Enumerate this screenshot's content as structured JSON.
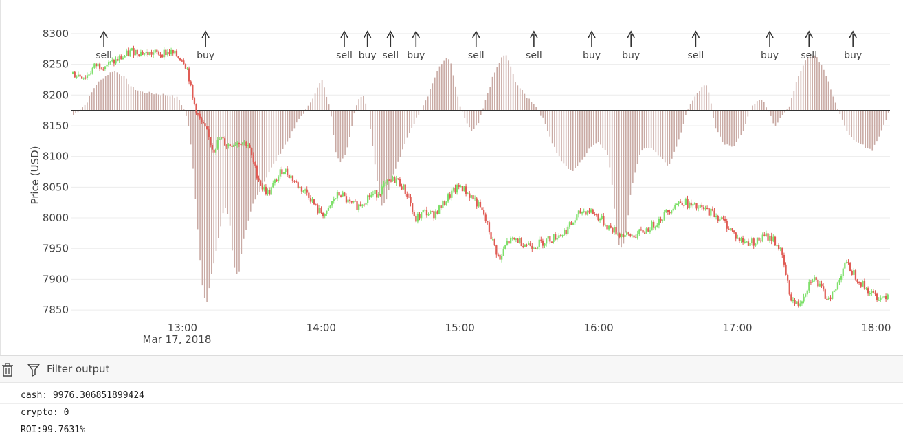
{
  "chart_data": {
    "type": "candlestick",
    "ylabel": "Price (USD)",
    "ylim": [
      7840,
      8310
    ],
    "yticks": [
      7850,
      7900,
      7950,
      8000,
      8050,
      8100,
      8150,
      8200,
      8250,
      8300
    ],
    "xlim": [
      "12:12",
      "18:06"
    ],
    "xticks": [
      {
        "time": "13:00",
        "label": "13:00",
        "sublabel": "Mar 17, 2018"
      },
      {
        "time": "14:00",
        "label": "14:00"
      },
      {
        "time": "15:00",
        "label": "15:00"
      },
      {
        "time": "16:00",
        "label": "16:00"
      },
      {
        "time": "17:00",
        "label": "17:00"
      },
      {
        "time": "18:00",
        "label": "18:00"
      }
    ],
    "baseline": 8175,
    "colors": {
      "up": "#7ee06b",
      "down": "#e05c55",
      "histogram": "#c9aaa4",
      "baseline": "#333333"
    },
    "price_path": [
      [
        "12:12",
        8235
      ],
      [
        "12:18",
        8230
      ],
      [
        "12:22",
        8248
      ],
      [
        "12:28",
        8250
      ],
      [
        "12:34",
        8262
      ],
      [
        "12:38",
        8272
      ],
      [
        "12:44",
        8268
      ],
      [
        "12:50",
        8268
      ],
      [
        "12:54",
        8270
      ],
      [
        "12:58",
        8262
      ],
      [
        "13:00",
        8258
      ],
      [
        "13:02",
        8240
      ],
      [
        "13:04",
        8195
      ],
      [
        "13:07",
        8160
      ],
      [
        "13:10",
        8140
      ],
      [
        "13:13",
        8110
      ],
      [
        "13:16",
        8130
      ],
      [
        "13:19",
        8118
      ],
      [
        "13:22",
        8122
      ],
      [
        "13:25",
        8125
      ],
      [
        "13:28",
        8120
      ],
      [
        "13:31",
        8080
      ],
      [
        "13:34",
        8050
      ],
      [
        "13:37",
        8040
      ],
      [
        "13:40",
        8060
      ],
      [
        "13:43",
        8080
      ],
      [
        "13:46",
        8070
      ],
      [
        "13:50",
        8050
      ],
      [
        "13:54",
        8040
      ],
      [
        "13:58",
        8012
      ],
      [
        "14:02",
        8005
      ],
      [
        "14:05",
        8030
      ],
      [
        "14:08",
        8040
      ],
      [
        "14:12",
        8022
      ],
      [
        "14:16",
        8020
      ],
      [
        "14:20",
        8035
      ],
      [
        "14:24",
        8040
      ],
      [
        "14:28",
        8055
      ],
      [
        "14:32",
        8064
      ],
      [
        "14:35",
        8050
      ],
      [
        "14:38",
        8030
      ],
      [
        "14:40",
        7995
      ],
      [
        "14:44",
        8010
      ],
      [
        "14:48",
        8005
      ],
      [
        "14:52",
        8020
      ],
      [
        "14:56",
        8040
      ],
      [
        "15:00",
        8052
      ],
      [
        "15:03",
        8040
      ],
      [
        "15:06",
        8030
      ],
      [
        "15:10",
        8005
      ],
      [
        "15:14",
        7960
      ],
      [
        "15:17",
        7930
      ],
      [
        "15:20",
        7960
      ],
      [
        "15:24",
        7965
      ],
      [
        "15:28",
        7958
      ],
      [
        "15:32",
        7955
      ],
      [
        "15:36",
        7962
      ],
      [
        "15:40",
        7968
      ],
      [
        "15:44",
        7975
      ],
      [
        "15:48",
        7990
      ],
      [
        "15:52",
        8010
      ],
      [
        "15:56",
        8012
      ],
      [
        "16:00",
        8000
      ],
      [
        "16:04",
        7985
      ],
      [
        "16:08",
        7975
      ],
      [
        "16:12",
        7970
      ],
      [
        "16:16",
        7972
      ],
      [
        "16:20",
        7980
      ],
      [
        "16:24",
        7990
      ],
      [
        "16:28",
        8005
      ],
      [
        "16:32",
        8020
      ],
      [
        "16:36",
        8028
      ],
      [
        "16:40",
        8018
      ],
      [
        "16:44",
        8015
      ],
      [
        "16:48",
        8010
      ],
      [
        "16:52",
        8000
      ],
      [
        "16:56",
        7985
      ],
      [
        "17:00",
        7965
      ],
      [
        "17:04",
        7960
      ],
      [
        "17:08",
        7962
      ],
      [
        "17:12",
        7970
      ],
      [
        "17:15",
        7966
      ],
      [
        "17:18",
        7950
      ],
      [
        "17:20",
        7920
      ],
      [
        "17:22",
        7880
      ],
      [
        "17:24",
        7862
      ],
      [
        "17:26",
        7858
      ],
      [
        "17:29",
        7880
      ],
      [
        "17:32",
        7905
      ],
      [
        "17:35",
        7890
      ],
      [
        "17:38",
        7870
      ],
      [
        "17:42",
        7880
      ],
      [
        "17:46",
        7928
      ],
      [
        "17:50",
        7910
      ],
      [
        "17:54",
        7890
      ],
      [
        "17:58",
        7875
      ],
      [
        "18:02",
        7870
      ],
      [
        "18:06",
        7880
      ]
    ],
    "histogram_path": [
      [
        "12:12",
        8165
      ],
      [
        "12:18",
        8185
      ],
      [
        "12:22",
        8215
      ],
      [
        "12:26",
        8230
      ],
      [
        "12:30",
        8240
      ],
      [
        "12:34",
        8232
      ],
      [
        "12:38",
        8212
      ],
      [
        "12:42",
        8205
      ],
      [
        "12:48",
        8202
      ],
      [
        "12:54",
        8200
      ],
      [
        "12:58",
        8195
      ],
      [
        "13:00",
        8180
      ],
      [
        "13:02",
        8160
      ],
      [
        "13:04",
        8100
      ],
      [
        "13:06",
        8000
      ],
      [
        "13:08",
        7900
      ],
      [
        "13:10",
        7855
      ],
      [
        "13:12",
        7900
      ],
      [
        "13:15",
        7960
      ],
      [
        "13:18",
        8020
      ],
      [
        "13:20",
        8000
      ],
      [
        "13:22",
        7920
      ],
      [
        "13:24",
        7905
      ],
      [
        "13:26",
        7960
      ],
      [
        "13:30",
        8020
      ],
      [
        "13:34",
        8050
      ],
      [
        "13:38",
        8080
      ],
      [
        "13:42",
        8105
      ],
      [
        "13:46",
        8130
      ],
      [
        "13:50",
        8160
      ],
      [
        "13:54",
        8180
      ],
      [
        "13:58",
        8210
      ],
      [
        "14:00",
        8225
      ],
      [
        "14:02",
        8200
      ],
      [
        "14:04",
        8170
      ],
      [
        "14:06",
        8110
      ],
      [
        "14:08",
        8090
      ],
      [
        "14:10",
        8100
      ],
      [
        "14:12",
        8130
      ],
      [
        "14:14",
        8170
      ],
      [
        "14:16",
        8195
      ],
      [
        "14:18",
        8200
      ],
      [
        "14:20",
        8175
      ],
      [
        "14:22",
        8120
      ],
      [
        "14:24",
        8060
      ],
      [
        "14:26",
        8020
      ],
      [
        "14:28",
        8030
      ],
      [
        "14:30",
        8060
      ],
      [
        "14:34",
        8100
      ],
      [
        "14:38",
        8140
      ],
      [
        "14:42",
        8170
      ],
      [
        "14:46",
        8200
      ],
      [
        "14:50",
        8240
      ],
      [
        "14:54",
        8262
      ],
      [
        "14:56",
        8250
      ],
      [
        "14:58",
        8210
      ],
      [
        "15:00",
        8180
      ],
      [
        "15:02",
        8160
      ],
      [
        "15:05",
        8140
      ],
      [
        "15:08",
        8155
      ],
      [
        "15:10",
        8180
      ],
      [
        "15:14",
        8230
      ],
      [
        "15:18",
        8262
      ],
      [
        "15:20",
        8265
      ],
      [
        "15:24",
        8220
      ],
      [
        "15:28",
        8200
      ],
      [
        "15:32",
        8185
      ],
      [
        "15:36",
        8160
      ],
      [
        "15:40",
        8120
      ],
      [
        "15:44",
        8090
      ],
      [
        "15:48",
        8075
      ],
      [
        "15:52",
        8090
      ],
      [
        "15:56",
        8115
      ],
      [
        "16:00",
        8125
      ],
      [
        "16:04",
        8100
      ],
      [
        "16:06",
        8040
      ],
      [
        "16:08",
        7960
      ],
      [
        "16:10",
        7950
      ],
      [
        "16:12",
        7985
      ],
      [
        "16:14",
        8050
      ],
      [
        "16:18",
        8110
      ],
      [
        "16:22",
        8115
      ],
      [
        "16:26",
        8100
      ],
      [
        "16:30",
        8085
      ],
      [
        "16:34",
        8120
      ],
      [
        "16:38",
        8175
      ],
      [
        "16:42",
        8200
      ],
      [
        "16:46",
        8220
      ],
      [
        "16:48",
        8195
      ],
      [
        "16:50",
        8150
      ],
      [
        "16:54",
        8120
      ],
      [
        "16:58",
        8115
      ],
      [
        "17:02",
        8140
      ],
      [
        "17:06",
        8180
      ],
      [
        "17:10",
        8195
      ],
      [
        "17:14",
        8170
      ],
      [
        "17:16",
        8148
      ],
      [
        "17:18",
        8160
      ],
      [
        "17:22",
        8180
      ],
      [
        "17:26",
        8230
      ],
      [
        "17:30",
        8262
      ],
      [
        "17:34",
        8265
      ],
      [
        "17:38",
        8235
      ],
      [
        "17:42",
        8190
      ],
      [
        "17:46",
        8150
      ],
      [
        "17:50",
        8125
      ],
      [
        "17:54",
        8118
      ],
      [
        "17:58",
        8110
      ],
      [
        "18:02",
        8140
      ],
      [
        "18:06",
        8180
      ]
    ],
    "annotations": [
      {
        "time": "12:26",
        "label": "sell"
      },
      {
        "time": "13:10",
        "label": "buy"
      },
      {
        "time": "14:10",
        "label": "sell"
      },
      {
        "time": "14:20",
        "label": "buy"
      },
      {
        "time": "14:30",
        "label": "sell"
      },
      {
        "time": "14:41",
        "label": "buy"
      },
      {
        "time": "15:07",
        "label": "sell"
      },
      {
        "time": "15:32",
        "label": "sell"
      },
      {
        "time": "15:57",
        "label": "buy"
      },
      {
        "time": "16:14",
        "label": "buy"
      },
      {
        "time": "16:42",
        "label": "sell"
      },
      {
        "time": "17:14",
        "label": "buy"
      },
      {
        "time": "17:31",
        "label": "sell"
      },
      {
        "time": "17:50",
        "label": "buy"
      }
    ]
  },
  "toolbar": {
    "trash_icon": "trash-icon",
    "filter_icon": "funnel-icon",
    "filter_placeholder": "Filter output"
  },
  "console": {
    "lines": [
      "cash: 9976.306851899424",
      "crypto: 0",
      "ROI:99.7631%"
    ]
  }
}
